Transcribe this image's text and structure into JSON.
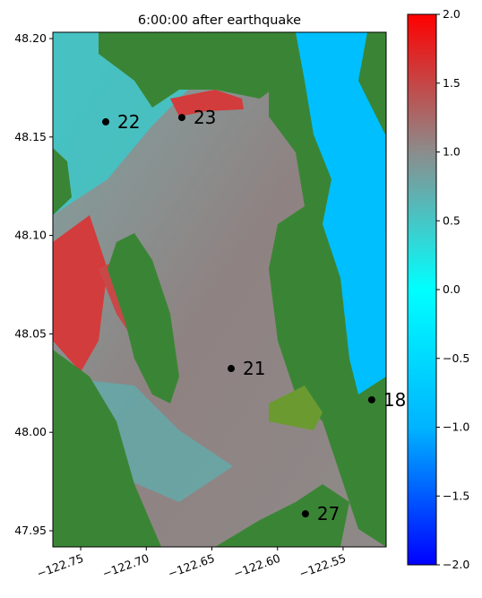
{
  "chart_data": {
    "type": "scatter",
    "title": "6:00:00 after earthquake",
    "x": [
      -122.7309,
      -122.6729,
      -122.6353,
      -122.5282,
      -122.5787
    ],
    "y": [
      48.1577,
      48.1599,
      48.0324,
      48.0165,
      47.9586
    ],
    "labels": [
      "22",
      "23",
      "21",
      "18",
      "27"
    ],
    "color": "#000000",
    "xlim": [
      -122.7712,
      -122.5172
    ],
    "ylim": [
      47.9418,
      48.2032
    ],
    "xticks": [
      {
        "value": -122.75,
        "label": "−122.75"
      },
      {
        "value": -122.7,
        "label": "−122.70"
      },
      {
        "value": -122.65,
        "label": "−122.65"
      },
      {
        "value": -122.6,
        "label": "−122.60"
      },
      {
        "value": -122.55,
        "label": "−122.55"
      }
    ],
    "yticks": [
      {
        "value": 48.2,
        "label": "48.20"
      },
      48.15,
      {
        "value": 48.1,
        "label": "48.10"
      },
      48.05,
      {
        "value": 48.0,
        "label": "48.00"
      },
      47.95
    ],
    "colorbar": {
      "clim": [
        -2,
        2
      ],
      "colors": [
        "#0000ff",
        "#00b4ff",
        "#00ffff",
        "#8c8c8c",
        "#ff0000"
      ],
      "ticks": [
        {
          "value": 2,
          "label": "2.0"
        },
        {
          "value": 1.5,
          "label": "1.5"
        },
        {
          "value": 1,
          "label": "1.0"
        },
        {
          "value": 0.5,
          "label": "0.5"
        },
        {
          "value": 0,
          "label": "0.0"
        },
        {
          "value": -0.5,
          "label": "−0.5"
        },
        {
          "value": -1,
          "label": "−1.0"
        },
        {
          "value": -1.5,
          "label": "−1.5"
        },
        {
          "value": -2,
          "label": "−2.0"
        }
      ]
    }
  }
}
